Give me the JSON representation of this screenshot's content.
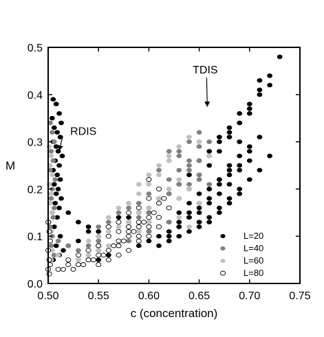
{
  "chart_data": {
    "type": "scatter",
    "title": "",
    "xlabel": "c (concentration)",
    "ylabel": "M",
    "xlim": [
      0.5,
      0.75
    ],
    "ylim": [
      0.0,
      0.5
    ],
    "xticks": [
      "0.50",
      "0.55",
      "0.60",
      "0.65",
      "0.70",
      "0.75"
    ],
    "yticks": [
      "0.0",
      "0.1",
      "0.2",
      "0.3",
      "0.4",
      "0.5"
    ],
    "grid": false,
    "legend_position": "bottom-right",
    "annotations": [
      {
        "text": "TDIS",
        "x": 0.656,
        "y": 0.445,
        "arrow_to": [
          0.658,
          0.375
        ]
      },
      {
        "text": "RDIS",
        "x": 0.535,
        "y": 0.315,
        "arrow_to": [
          0.511,
          0.282
        ]
      }
    ],
    "series": [
      {
        "name": "L=20",
        "color": "#000000",
        "marker": "filled-circle",
        "x": [
          0.505,
          0.508,
          0.511,
          0.504,
          0.513,
          0.506,
          0.509,
          0.512,
          0.505,
          0.508,
          0.51,
          0.514,
          0.507,
          0.511,
          0.505,
          0.509,
          0.512,
          0.506,
          0.51,
          0.508,
          0.513,
          0.507,
          0.511,
          0.504,
          0.509,
          0.506,
          0.512,
          0.508,
          0.511,
          0.505,
          0.515,
          0.52,
          0.53,
          0.54,
          0.55,
          0.56,
          0.57,
          0.58,
          0.59,
          0.6,
          0.61,
          0.62,
          0.63,
          0.64,
          0.65,
          0.66,
          0.67,
          0.68,
          0.69,
          0.7,
          0.71,
          0.72,
          0.73,
          0.6,
          0.61,
          0.62,
          0.63,
          0.64,
          0.65,
          0.66,
          0.67,
          0.68,
          0.69,
          0.7,
          0.71,
          0.62,
          0.63,
          0.64,
          0.65,
          0.66,
          0.67,
          0.68,
          0.69,
          0.7,
          0.63,
          0.64,
          0.65,
          0.66,
          0.67,
          0.68,
          0.69,
          0.66,
          0.67,
          0.68,
          0.69,
          0.7,
          0.71,
          0.72,
          0.64,
          0.65,
          0.66,
          0.67,
          0.68,
          0.69,
          0.7,
          0.71,
          0.55,
          0.56,
          0.57,
          0.58,
          0.59,
          0.6,
          0.61,
          0.62,
          0.63,
          0.64,
          0.65,
          0.66,
          0.67,
          0.68,
          0.69,
          0.7,
          0.61,
          0.62,
          0.63,
          0.64,
          0.65,
          0.66,
          0.67,
          0.68,
          0.69,
          0.65,
          0.66,
          0.67,
          0.68,
          0.69,
          0.7,
          0.71,
          0.72,
          0.52,
          0.53,
          0.54,
          0.55,
          0.56,
          0.57,
          0.58,
          0.59,
          0.6,
          0.61
        ],
        "y": [
          0.39,
          0.38,
          0.36,
          0.35,
          0.34,
          0.33,
          0.32,
          0.31,
          0.3,
          0.29,
          0.28,
          0.27,
          0.26,
          0.25,
          0.24,
          0.23,
          0.22,
          0.21,
          0.2,
          0.19,
          0.18,
          0.17,
          0.16,
          0.15,
          0.14,
          0.12,
          0.1,
          0.08,
          0.06,
          0.05,
          0.07,
          0.08,
          0.09,
          0.11,
          0.1,
          0.12,
          0.13,
          0.14,
          0.15,
          0.16,
          0.18,
          0.19,
          0.21,
          0.23,
          0.26,
          0.28,
          0.31,
          0.33,
          0.36,
          0.38,
          0.41,
          0.44,
          0.48,
          0.11,
          0.12,
          0.13,
          0.15,
          0.17,
          0.19,
          0.2,
          0.22,
          0.24,
          0.27,
          0.29,
          0.31,
          0.1,
          0.12,
          0.14,
          0.16,
          0.18,
          0.21,
          0.23,
          0.25,
          0.28,
          0.13,
          0.15,
          0.17,
          0.2,
          0.22,
          0.25,
          0.3,
          0.27,
          0.3,
          0.32,
          0.34,
          0.36,
          0.4,
          0.42,
          0.2,
          0.23,
          0.25,
          0.28,
          0.31,
          0.34,
          0.37,
          0.43,
          0.05,
          0.06,
          0.06,
          0.07,
          0.08,
          0.09,
          0.1,
          0.11,
          0.12,
          0.14,
          0.15,
          0.17,
          0.19,
          0.21,
          0.24,
          0.26,
          0.08,
          0.09,
          0.1,
          0.11,
          0.13,
          0.14,
          0.16,
          0.18,
          0.2,
          0.12,
          0.13,
          0.15,
          0.17,
          0.19,
          0.22,
          0.24,
          0.27,
          0.15,
          0.13,
          0.12,
          0.11,
          0.1,
          0.14,
          0.13,
          0.12,
          0.15,
          0.17
        ]
      },
      {
        "name": "L=40",
        "color": "#808080",
        "marker": "filled-circle",
        "x": [
          0.502,
          0.504,
          0.506,
          0.503,
          0.505,
          0.502,
          0.507,
          0.504,
          0.503,
          0.506,
          0.505,
          0.502,
          0.504,
          0.503,
          0.506,
          0.51,
          0.52,
          0.53,
          0.54,
          0.55,
          0.56,
          0.57,
          0.58,
          0.59,
          0.6,
          0.61,
          0.62,
          0.63,
          0.64,
          0.65,
          0.66,
          0.55,
          0.56,
          0.57,
          0.58,
          0.59,
          0.6,
          0.61,
          0.62,
          0.63,
          0.64,
          0.65,
          0.57,
          0.58,
          0.59,
          0.6,
          0.61,
          0.62,
          0.63,
          0.64,
          0.6,
          0.61,
          0.62,
          0.63,
          0.64,
          0.65,
          0.53,
          0.54,
          0.55,
          0.56,
          0.57,
          0.58,
          0.59,
          0.6,
          0.61,
          0.62,
          0.62,
          0.63,
          0.64,
          0.65,
          0.66,
          0.61,
          0.62,
          0.63,
          0.64,
          0.65
        ],
        "y": [
          0.34,
          0.32,
          0.3,
          0.28,
          0.26,
          0.24,
          0.22,
          0.2,
          0.18,
          0.16,
          0.14,
          0.12,
          0.1,
          0.08,
          0.06,
          0.09,
          0.08,
          0.07,
          0.08,
          0.09,
          0.1,
          0.11,
          0.12,
          0.14,
          0.15,
          0.17,
          0.19,
          0.21,
          0.24,
          0.26,
          0.3,
          0.12,
          0.13,
          0.15,
          0.16,
          0.17,
          0.19,
          0.2,
          0.22,
          0.24,
          0.26,
          0.29,
          0.08,
          0.1,
          0.11,
          0.13,
          0.14,
          0.16,
          0.18,
          0.21,
          0.22,
          0.24,
          0.26,
          0.28,
          0.3,
          0.32,
          0.05,
          0.06,
          0.07,
          0.07,
          0.08,
          0.09,
          0.1,
          0.11,
          0.12,
          0.13,
          0.28,
          0.27,
          0.25,
          0.23,
          0.21,
          0.14,
          0.16,
          0.18,
          0.2,
          0.22
        ]
      },
      {
        "name": "L=60",
        "color": "#c0c0c0",
        "marker": "filled-circle",
        "x": [
          0.501,
          0.503,
          0.502,
          0.504,
          0.501,
          0.503,
          0.502,
          0.504,
          0.501,
          0.503,
          0.502,
          0.504,
          0.503,
          0.51,
          0.52,
          0.53,
          0.54,
          0.55,
          0.56,
          0.57,
          0.58,
          0.59,
          0.6,
          0.61,
          0.62,
          0.63,
          0.64,
          0.54,
          0.55,
          0.56,
          0.57,
          0.58,
          0.59,
          0.6,
          0.61,
          0.62,
          0.63,
          0.56,
          0.57,
          0.58,
          0.59,
          0.6,
          0.61,
          0.62,
          0.59,
          0.6,
          0.61,
          0.62,
          0.63,
          0.64,
          0.65,
          0.66,
          0.63,
          0.64,
          0.65
        ],
        "y": [
          0.29,
          0.27,
          0.25,
          0.23,
          0.21,
          0.19,
          0.17,
          0.15,
          0.13,
          0.11,
          0.09,
          0.07,
          0.05,
          0.06,
          0.05,
          0.05,
          0.06,
          0.07,
          0.08,
          0.09,
          0.1,
          0.11,
          0.13,
          0.14,
          0.16,
          0.18,
          0.2,
          0.09,
          0.1,
          0.11,
          0.12,
          0.13,
          0.15,
          0.16,
          0.18,
          0.2,
          0.22,
          0.14,
          0.16,
          0.17,
          0.19,
          0.21,
          0.23,
          0.26,
          0.21,
          0.23,
          0.25,
          0.27,
          0.29,
          0.31,
          0.3,
          0.27,
          0.14,
          0.12,
          0.17
        ]
      },
      {
        "name": "L=80",
        "color": "#ffffff",
        "marker": "open-circle",
        "x": [
          0.5,
          0.501,
          0.502,
          0.5,
          0.501,
          0.502,
          0.5,
          0.501,
          0.51,
          0.515,
          0.52,
          0.525,
          0.53,
          0.535,
          0.54,
          0.545,
          0.55,
          0.555,
          0.56,
          0.565,
          0.57,
          0.575,
          0.58,
          0.585,
          0.59,
          0.595,
          0.6,
          0.605,
          0.61,
          0.615,
          0.52,
          0.53,
          0.54,
          0.55,
          0.56,
          0.57,
          0.58,
          0.59,
          0.6,
          0.61,
          0.55,
          0.56,
          0.57,
          0.58,
          0.59,
          0.6,
          0.61,
          0.62,
          0.56,
          0.57,
          0.58,
          0.59,
          0.6,
          0.61,
          0.54,
          0.55,
          0.56,
          0.57,
          0.58,
          0.59,
          0.6
        ],
        "y": [
          0.13,
          0.11,
          0.09,
          0.07,
          0.05,
          0.04,
          0.03,
          0.02,
          0.03,
          0.03,
          0.04,
          0.03,
          0.04,
          0.04,
          0.05,
          0.05,
          0.06,
          0.06,
          0.07,
          0.08,
          0.08,
          0.09,
          0.1,
          0.11,
          0.12,
          0.13,
          0.14,
          0.15,
          0.17,
          0.18,
          0.05,
          0.06,
          0.05,
          0.08,
          0.07,
          0.09,
          0.11,
          0.1,
          0.12,
          0.14,
          0.04,
          0.05,
          0.06,
          0.07,
          0.09,
          0.1,
          0.12,
          0.16,
          0.12,
          0.13,
          0.15,
          0.16,
          0.18,
          0.2,
          0.07,
          0.08,
          0.1,
          0.11,
          0.12,
          0.13,
          0.22
        ]
      }
    ]
  }
}
